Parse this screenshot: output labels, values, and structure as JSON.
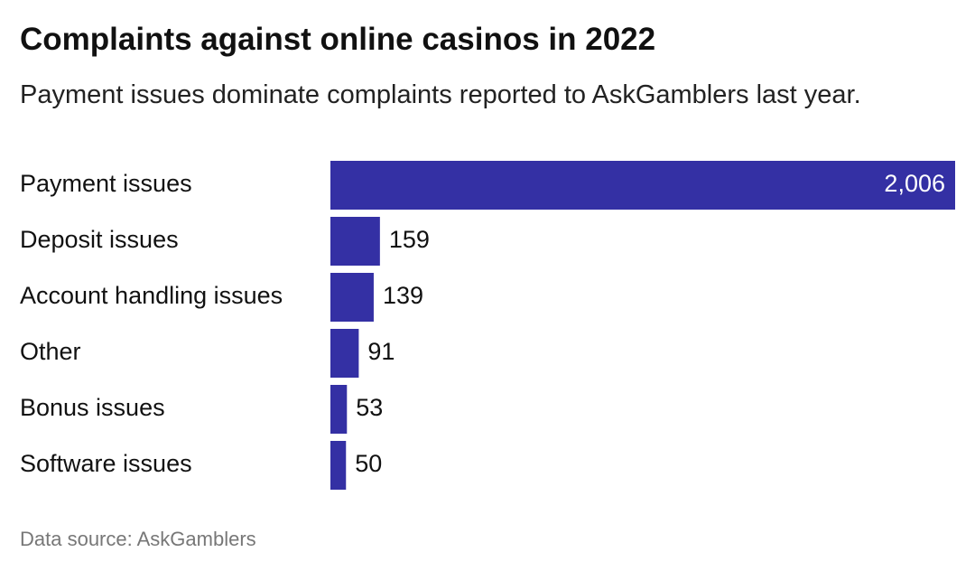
{
  "chart_data": {
    "type": "bar",
    "orientation": "horizontal",
    "title": "Complaints against online casinos in 2022",
    "subtitle": "Payment issues dominate complaints reported to AskGamblers last year.",
    "source": "Data source: AskGamblers",
    "categories": [
      "Payment issues",
      "Deposit issues",
      "Account handling issues",
      "Other",
      "Bonus issues",
      "Software issues"
    ],
    "values": [
      2006,
      159,
      139,
      91,
      53,
      50
    ],
    "value_labels": [
      "2,006",
      "159",
      "139",
      "91",
      "53",
      "50"
    ],
    "color": "#3430a4"
  }
}
